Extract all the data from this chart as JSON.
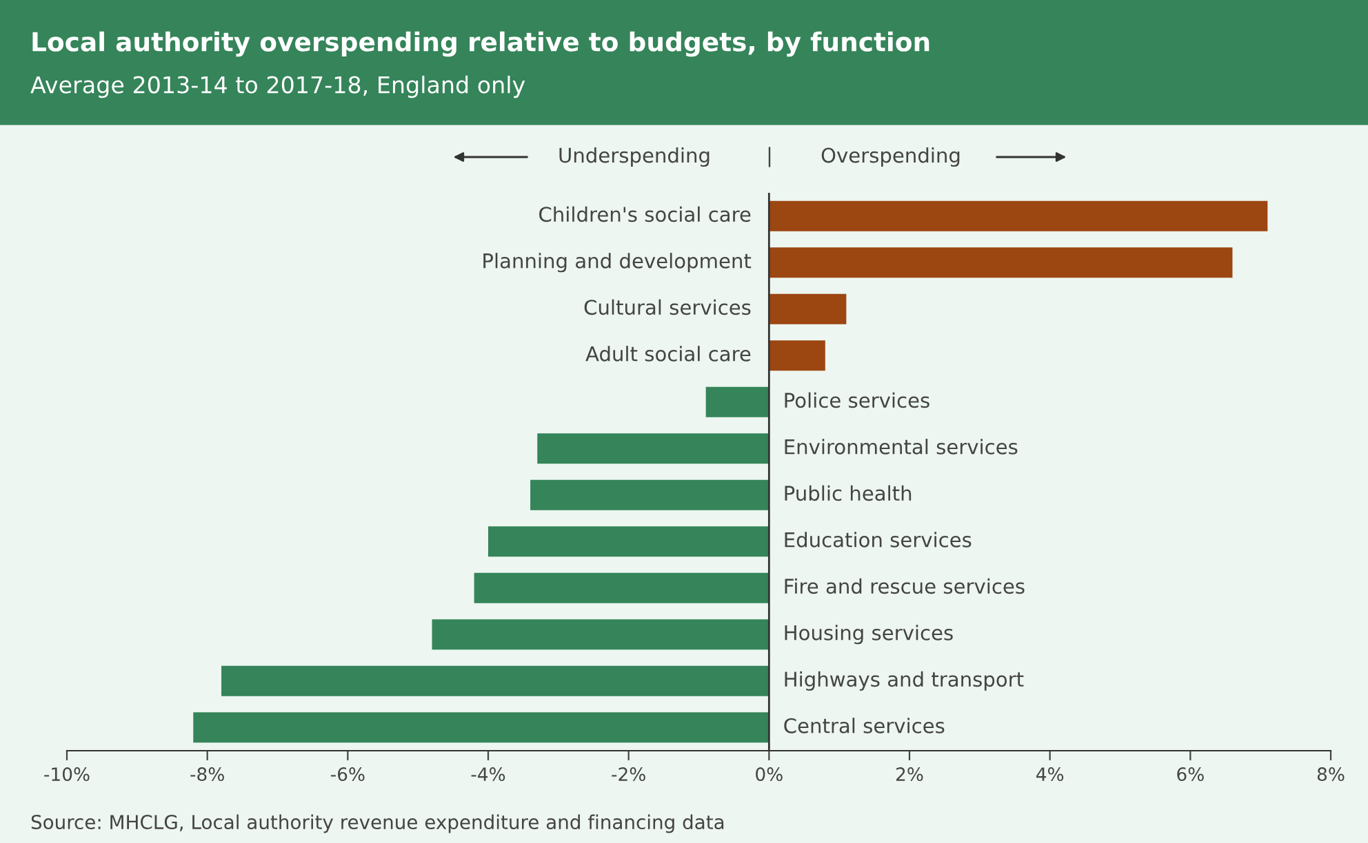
{
  "chart_data": {
    "type": "bar",
    "orientation": "horizontal",
    "title": "Local authority overspending relative to budgets, by function",
    "subtitle": "Average 2013-14 to 2017-18, England only",
    "categories": [
      "Children's social care",
      "Planning and development",
      "Cultural services",
      "Adult social care",
      "Police services",
      "Environmental services",
      "Public health",
      "Education services",
      "Fire and rescue services",
      "Housing services",
      "Highways and transport",
      "Central services"
    ],
    "values": [
      7.1,
      6.6,
      1.1,
      0.8,
      -0.9,
      -3.3,
      -3.4,
      -4.0,
      -4.2,
      -4.8,
      -7.8,
      -8.2
    ],
    "colors": [
      "#9c4612",
      "#9c4612",
      "#9c4612",
      "#9c4612",
      "#35845a",
      "#35845a",
      "#35845a",
      "#35845a",
      "#35845a",
      "#35845a",
      "#35845a",
      "#35845a"
    ],
    "xlim": [
      -10,
      8
    ],
    "xticks": [
      {
        "value": -10,
        "label": "-10%"
      },
      {
        "value": -8,
        "label": "-8%"
      },
      {
        "value": -6,
        "label": "-6%"
      },
      {
        "value": -4,
        "label": "-4%"
      },
      {
        "value": -2,
        "label": "-2%"
      },
      {
        "value": 0,
        "label": "0%"
      },
      {
        "value": 2,
        "label": "2%"
      },
      {
        "value": 4,
        "label": "4%"
      },
      {
        "value": 6,
        "label": "6%"
      },
      {
        "value": 8,
        "label": "8%"
      }
    ],
    "tick_labels": "x",
    "grid": false,
    "legend": false,
    "annotations": [
      "Underspending",
      "|",
      "Overspending",
      "Source: MHCLG, Local authority revenue expenditure and financing data"
    ]
  }
}
